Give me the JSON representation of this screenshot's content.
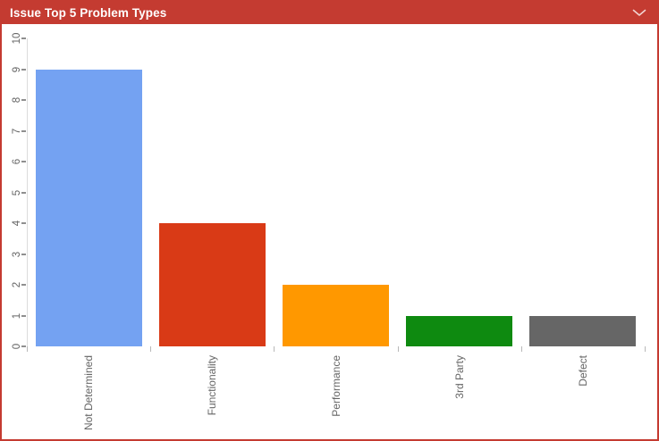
{
  "header": {
    "title": "Issue Top 5 Problem Types",
    "background_color": "#C43B31",
    "text_color": "#FFFFFF",
    "collapse_icon": "chevron-down-icon"
  },
  "chart_data": {
    "type": "bar",
    "title": "Issue Top 5 Problem Types",
    "categories": [
      "Not Determined",
      "Functionality",
      "Performance",
      "3rd Party",
      "Defect"
    ],
    "values": [
      9,
      4,
      2,
      1,
      1
    ],
    "bar_colors": [
      "#74A2F2",
      "#D93A16",
      "#FF9800",
      "#0E8A10",
      "#666666"
    ],
    "xlabel": "",
    "ylabel": "",
    "ylim": [
      0,
      10
    ],
    "y_ticks": [
      0,
      1,
      2,
      3,
      4,
      5,
      6,
      7,
      8,
      9,
      10
    ],
    "grid": "off",
    "legend": "none",
    "x_label_rotation": -90,
    "y_label_rotation": -90,
    "axis_line_color": "#DCDCDC",
    "tick_color": "#8F8F8F",
    "label_color": "#666666"
  }
}
